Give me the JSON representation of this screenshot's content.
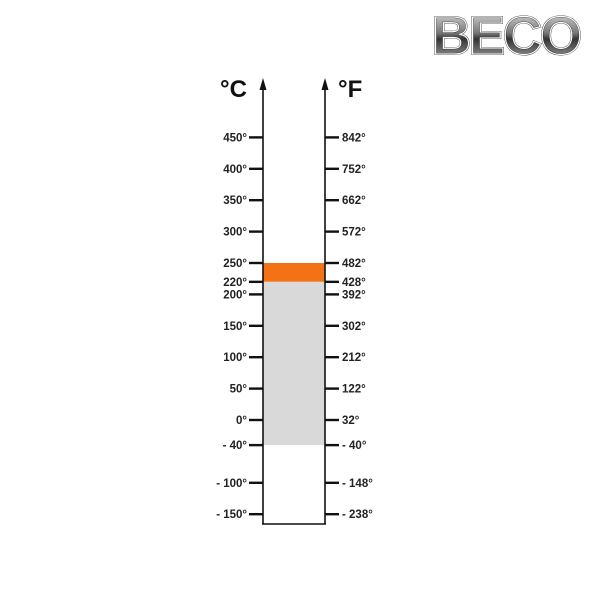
{
  "logo": {
    "text": "BECO"
  },
  "scale": {
    "celsius_unit": "°C",
    "fahrenheit_unit": "°F",
    "ticks": [
      {
        "c": 450,
        "c_label": "450°",
        "f_label": "842°"
      },
      {
        "c": 400,
        "c_label": "400°",
        "f_label": "752°"
      },
      {
        "c": 350,
        "c_label": "350°",
        "f_label": "662°"
      },
      {
        "c": 300,
        "c_label": "300°",
        "f_label": "572°"
      },
      {
        "c": 250,
        "c_label": "250°",
        "f_label": "482°"
      },
      {
        "c": 220,
        "c_label": "220°",
        "f_label": "428°"
      },
      {
        "c": 200,
        "c_label": "200°",
        "f_label": "392°"
      },
      {
        "c": 150,
        "c_label": "150°",
        "f_label": "302°"
      },
      {
        "c": 100,
        "c_label": "100°",
        "f_label": "212°"
      },
      {
        "c": 50,
        "c_label": "50°",
        "f_label": "122°"
      },
      {
        "c": 0,
        "c_label": "0°",
        "f_label": "32°"
      },
      {
        "c": -40,
        "c_label": "- 40°",
        "f_label": "- 40°"
      },
      {
        "c": -100,
        "c_label": "- 100°",
        "f_label": "- 148°"
      },
      {
        "c": -150,
        "c_label": "- 150°",
        "f_label": "- 238°"
      }
    ],
    "ranges": [
      {
        "from_c": 220,
        "to_c": 250,
        "color": "#f47216"
      },
      {
        "from_c": -40,
        "to_c": 220,
        "color": "#d9d9d9"
      }
    ]
  }
}
